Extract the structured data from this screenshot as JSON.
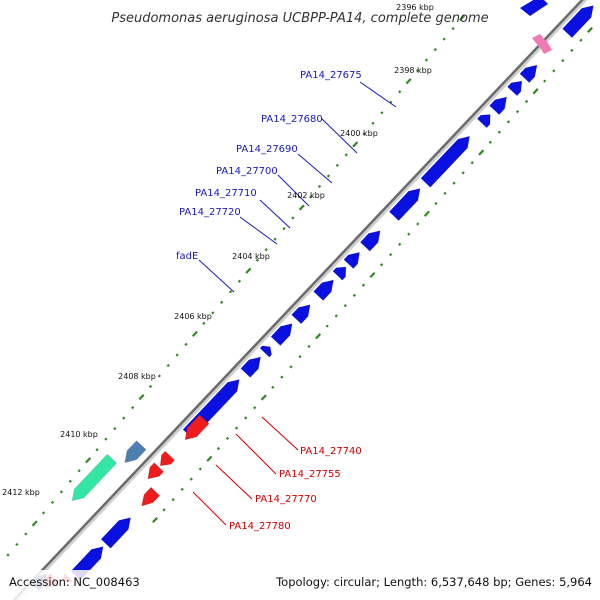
{
  "title": "Pseudomonas aeruginosa UCBPP-PA14, complete genome",
  "footer": {
    "accession": "Accession: NC_008463",
    "summary": "Topology: circular; Length: 6,537,648 bp; Genes: 5,964"
  },
  "colors": {
    "forward_gene": "#0a10e0",
    "reverse_gene": "#ee1c1c",
    "steel_gene": "#4d7fb3",
    "green_gene": "#33e6a6",
    "navy_gene": "#3a3a8c",
    "pink_marker": "#f07ab4",
    "tick_dot": "#2e8b1f",
    "backbone": "#6b6b6b",
    "forward_label": "#1a1ab8",
    "reverse_label": "#cc0000"
  },
  "ticks": [
    "2396 kbp",
    "2398 kbp",
    "2400 kbp",
    "2402 kbp",
    "2404 kbp",
    "2406 kbp",
    "2408 kbp",
    "2410 kbp",
    "2412 kbp"
  ],
  "forward_labels": [
    "PA14_27675",
    "PA14_27680",
    "PA14_27690",
    "PA14_27700",
    "PA14_27710",
    "PA14_27720",
    "fadE"
  ],
  "reverse_labels": [
    "PA14_27740",
    "PA14_27755",
    "PA14_27770",
    "PA14_27780"
  ]
}
